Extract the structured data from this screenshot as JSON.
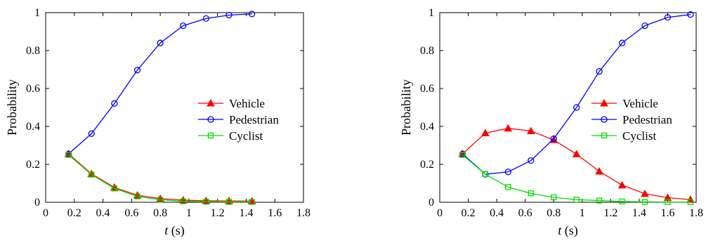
{
  "chart_data": [
    {
      "type": "line",
      "title": "",
      "xlabel_var": "t",
      "xlabel_unit": " (s)",
      "ylabel": "Probability",
      "xlim": [
        0,
        1.8
      ],
      "ylim": [
        0,
        1
      ],
      "xticks": [
        "0",
        "0.2",
        "0.4",
        "0.6",
        "0.8",
        "1",
        "1.2",
        "1.4",
        "1.6",
        "1.8"
      ],
      "yticks": [
        "0",
        "0.2",
        "0.4",
        "0.6",
        "0.8",
        "1"
      ],
      "grid": false,
      "legend_position": "right",
      "x": [
        0.16,
        0.32,
        0.48,
        0.64,
        0.8,
        0.96,
        1.12,
        1.28,
        1.44
      ],
      "series": [
        {
          "name": "Vehicle",
          "color": "#ff0000",
          "marker": "triangle",
          "values": [
            0.255,
            0.15,
            0.078,
            0.037,
            0.019,
            0.011,
            0.008,
            0.007,
            0.006
          ]
        },
        {
          "name": "Pedestrian",
          "color": "#0000ff",
          "marker": "circle",
          "values": [
            0.255,
            0.362,
            0.521,
            0.697,
            0.84,
            0.931,
            0.969,
            0.987,
            0.993
          ]
        },
        {
          "name": "Cyclist",
          "color": "#00dd00",
          "marker": "square",
          "values": [
            0.25,
            0.146,
            0.073,
            0.031,
            0.013,
            0.005,
            0.003,
            0.002,
            0.002
          ]
        }
      ]
    },
    {
      "type": "line",
      "title": "",
      "xlabel_var": "t",
      "xlabel_unit": " (s)",
      "ylabel": "Probability",
      "xlim": [
        0,
        1.8
      ],
      "ylim": [
        0,
        1
      ],
      "xticks": [
        "0",
        "0.2",
        "0.4",
        "0.6",
        "0.8",
        "1",
        "1.2",
        "1.4",
        "1.6",
        "1.8"
      ],
      "yticks": [
        "0",
        "0.2",
        "0.4",
        "0.6",
        "0.8",
        "1"
      ],
      "grid": false,
      "legend_position": "right",
      "x": [
        0.16,
        0.32,
        0.48,
        0.64,
        0.8,
        0.96,
        1.12,
        1.28,
        1.44,
        1.6,
        1.76
      ],
      "series": [
        {
          "name": "Vehicle",
          "color": "#ff0000",
          "marker": "triangle",
          "values": [
            0.255,
            0.365,
            0.39,
            0.376,
            0.329,
            0.254,
            0.163,
            0.09,
            0.045,
            0.024,
            0.014
          ]
        },
        {
          "name": "Pedestrian",
          "color": "#0000ff",
          "marker": "circle",
          "values": [
            0.255,
            0.148,
            0.16,
            0.22,
            0.335,
            0.5,
            0.69,
            0.84,
            0.931,
            0.975,
            0.99
          ]
        },
        {
          "name": "Cyclist",
          "color": "#00dd00",
          "marker": "square",
          "values": [
            0.25,
            0.148,
            0.08,
            0.047,
            0.026,
            0.014,
            0.009,
            0.004,
            0.002,
            0.001,
            0.001
          ]
        }
      ]
    }
  ]
}
